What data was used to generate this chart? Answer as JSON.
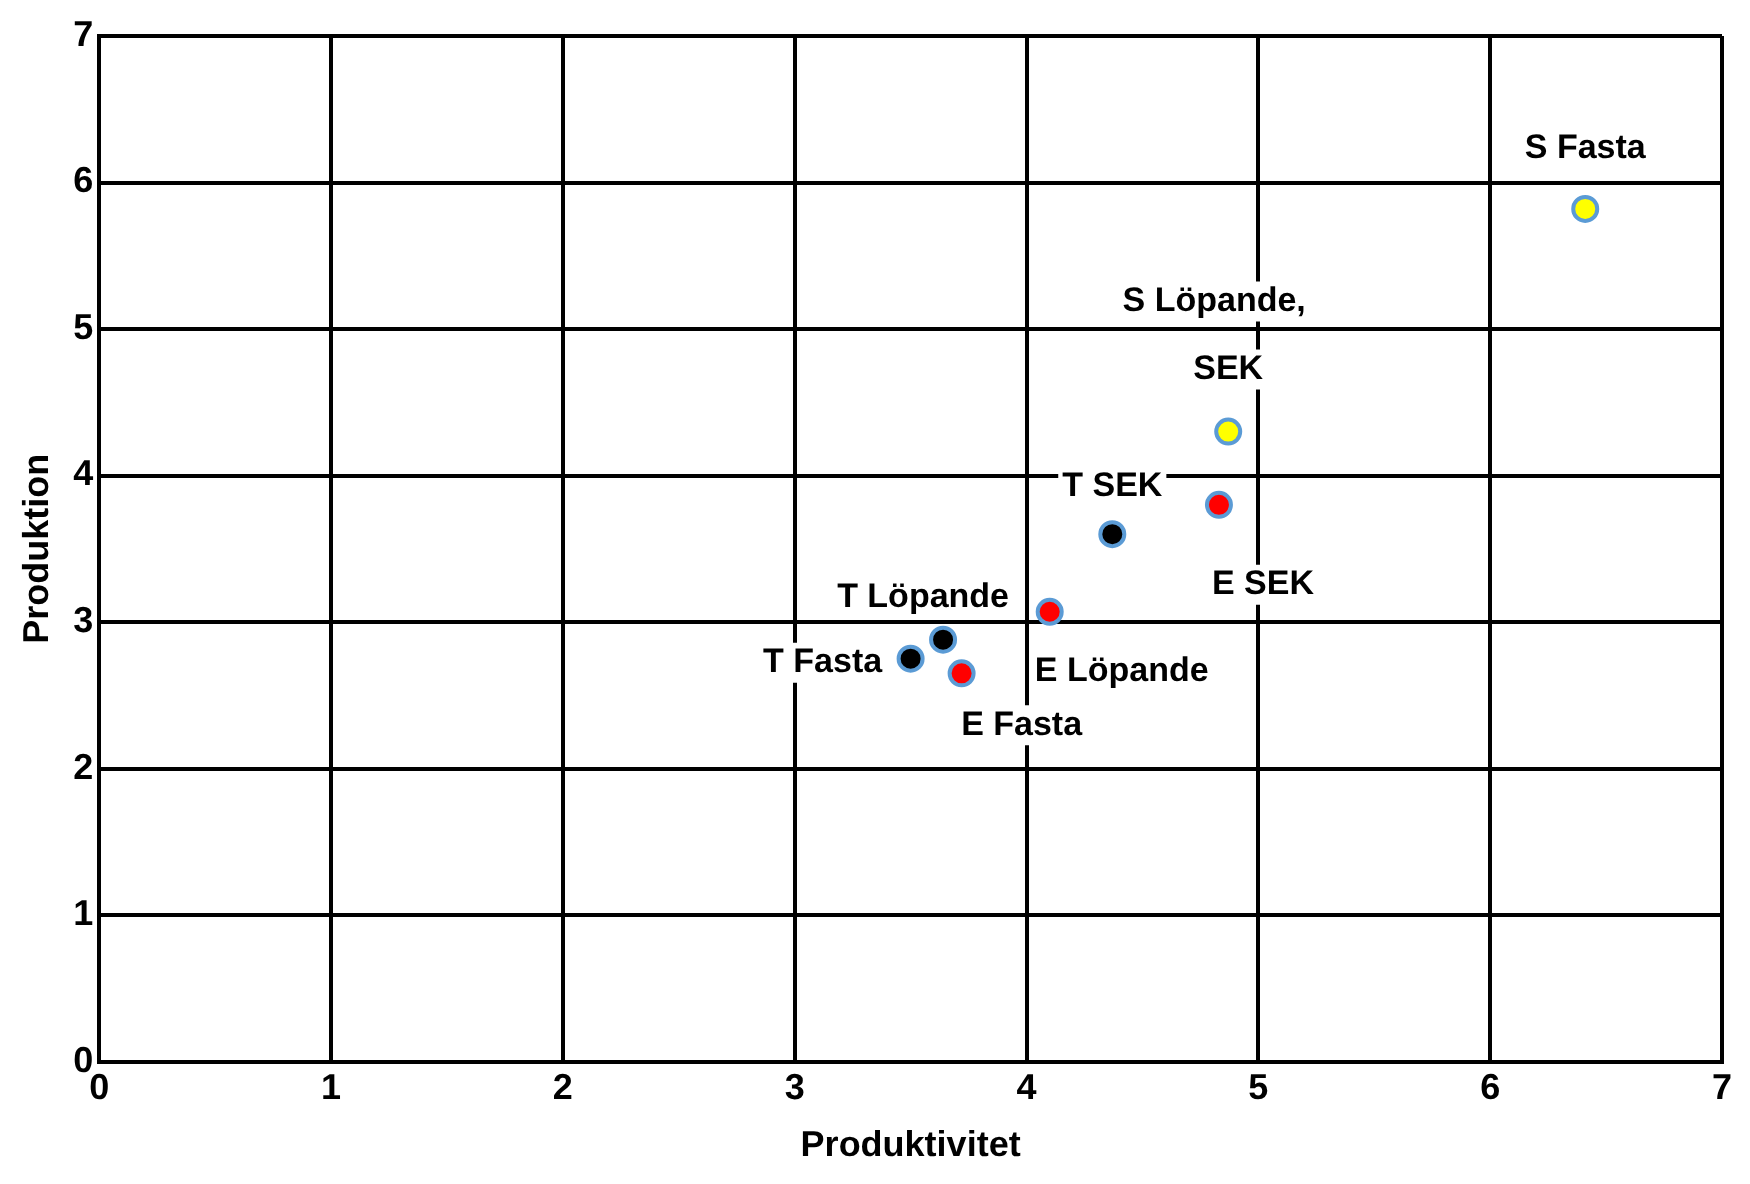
{
  "chart_data": {
    "type": "scatter",
    "xlabel": "Produktivitet",
    "ylabel": "Produktion",
    "xlim": [
      0,
      7
    ],
    "ylim": [
      0,
      7
    ],
    "xticks": [
      0,
      1,
      2,
      3,
      4,
      5,
      6,
      7
    ],
    "yticks": [
      0,
      1,
      2,
      3,
      4,
      5,
      6,
      7
    ],
    "grid": true,
    "legend": false,
    "marker": "circle",
    "series": [
      {
        "name": "S Fasta",
        "color": "#ffff00",
        "x": [
          6.41
        ],
        "values": [
          5.82
        ]
      },
      {
        "name": "S Löpande, SEK",
        "color": "#ffff00",
        "x": [
          4.87
        ],
        "values": [
          4.3
        ]
      },
      {
        "name": "T SEK",
        "color": "#000000",
        "x": [
          4.37
        ],
        "values": [
          3.6
        ]
      },
      {
        "name": "E SEK",
        "color": "#ff0000",
        "x": [
          4.83
        ],
        "values": [
          3.8
        ]
      },
      {
        "name": "E Löpande",
        "color": "#ff0000",
        "x": [
          4.1
        ],
        "values": [
          3.07
        ]
      },
      {
        "name": "T Löpande",
        "color": "#000000",
        "x": [
          3.64
        ],
        "values": [
          2.88
        ]
      },
      {
        "name": "T Fasta",
        "color": "#000000",
        "x": [
          3.5
        ],
        "values": [
          2.75
        ]
      },
      {
        "name": "E Fasta",
        "color": "#ff0000",
        "x": [
          3.72
        ],
        "values": [
          2.65
        ]
      }
    ]
  }
}
